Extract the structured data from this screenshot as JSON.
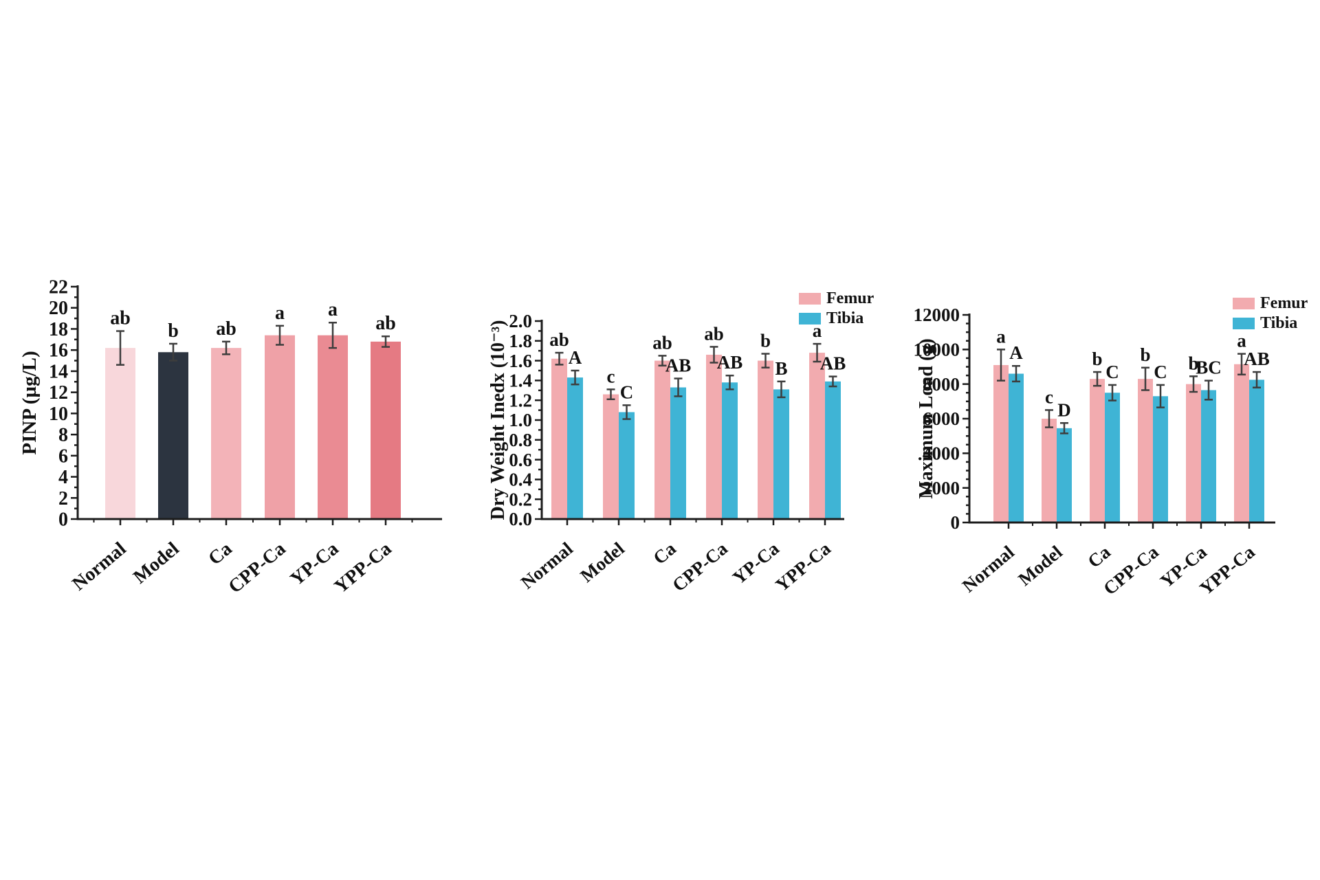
{
  "figure": {
    "background": "#ffffff",
    "groups": [
      "Normal",
      "Model",
      "Ca",
      "CPP-Ca",
      "YP-Ca",
      "YPP-Ca"
    ],
    "series_colors": {
      "femur": "#f2abaf",
      "tibia": "#3fb4d5"
    },
    "axis_color": "#1c1c1c",
    "error_bar_color": "#3d3d3d"
  },
  "chart_data": [
    {
      "type": "bar",
      "title": "",
      "xlabel": "",
      "ylabel": "PINP (µg/L)",
      "ylim": [
        0,
        22
      ],
      "ytick_step": 2,
      "ytick_minor_step": 1,
      "ytick_decimals": 0,
      "grid": false,
      "legend": null,
      "categories": [
        "Normal",
        "Model",
        "Ca",
        "CPP-Ca",
        "YP-Ca",
        "YPP-Ca"
      ],
      "series": [
        {
          "name": "PINP",
          "values": [
            16.2,
            15.8,
            16.2,
            17.4,
            17.4,
            16.8
          ],
          "errors": [
            1.6,
            0.8,
            0.6,
            0.9,
            1.2,
            0.5
          ],
          "sig_labels": [
            "ab",
            "b",
            "ab",
            "a",
            "a",
            "ab"
          ],
          "bar_colors": [
            "#f8d7db",
            "#2c3440",
            "#f3b3b8",
            "#efa1a7",
            "#ea8b93",
            "#e57a83"
          ]
        }
      ]
    },
    {
      "type": "bar",
      "title": "",
      "xlabel": "",
      "ylabel": "Dry Weight Inedx (10⁻³)",
      "ylim": [
        0,
        2.0
      ],
      "ytick_step": 0.2,
      "ytick_minor_step": 0.1,
      "ytick_decimals": 1,
      "grid": false,
      "legend": {
        "position": "top-right",
        "entries": [
          "Femur",
          "Tibia"
        ]
      },
      "categories": [
        "Normal",
        "Model",
        "Ca",
        "CPP-Ca",
        "YP-Ca",
        "YPP-Ca"
      ],
      "series": [
        {
          "name": "Femur",
          "color": "#f2abaf",
          "values": [
            1.62,
            1.26,
            1.6,
            1.66,
            1.6,
            1.68
          ],
          "errors": [
            0.06,
            0.05,
            0.05,
            0.08,
            0.07,
            0.09
          ],
          "sig_labels": [
            "ab",
            "c",
            "ab",
            "ab",
            "b",
            "a"
          ]
        },
        {
          "name": "Tibia",
          "color": "#3fb4d5",
          "values": [
            1.43,
            1.08,
            1.33,
            1.38,
            1.31,
            1.39
          ],
          "errors": [
            0.07,
            0.07,
            0.09,
            0.07,
            0.08,
            0.05
          ],
          "sig_labels": [
            "A",
            "C",
            "AB",
            "AB",
            "B",
            "AB"
          ]
        }
      ]
    },
    {
      "type": "bar",
      "title": "",
      "xlabel": "",
      "ylabel": "Maximum Load (g)",
      "ylim": [
        0,
        12000
      ],
      "ytick_step": 2000,
      "ytick_minor_step": 500,
      "ytick_decimals": 0,
      "grid": false,
      "legend": {
        "position": "top-right",
        "entries": [
          "Femur",
          "Tibia"
        ]
      },
      "categories": [
        "Normal",
        "Model",
        "Ca",
        "CPP-Ca",
        "YP-Ca",
        "YPP-Ca"
      ],
      "series": [
        {
          "name": "Femur",
          "color": "#f2abaf",
          "values": [
            9100,
            6000,
            8300,
            8300,
            8000,
            9150
          ],
          "errors": [
            900,
            500,
            400,
            650,
            450,
            600
          ],
          "sig_labels": [
            "a",
            "c",
            "b",
            "b",
            "b",
            "a"
          ]
        },
        {
          "name": "Tibia",
          "color": "#3fb4d5",
          "values": [
            8600,
            5450,
            7500,
            7300,
            7650,
            8250
          ],
          "errors": [
            450,
            300,
            450,
            650,
            550,
            450
          ],
          "sig_labels": [
            "A",
            "D",
            "C",
            "C",
            "BC",
            "AB"
          ]
        }
      ]
    }
  ]
}
